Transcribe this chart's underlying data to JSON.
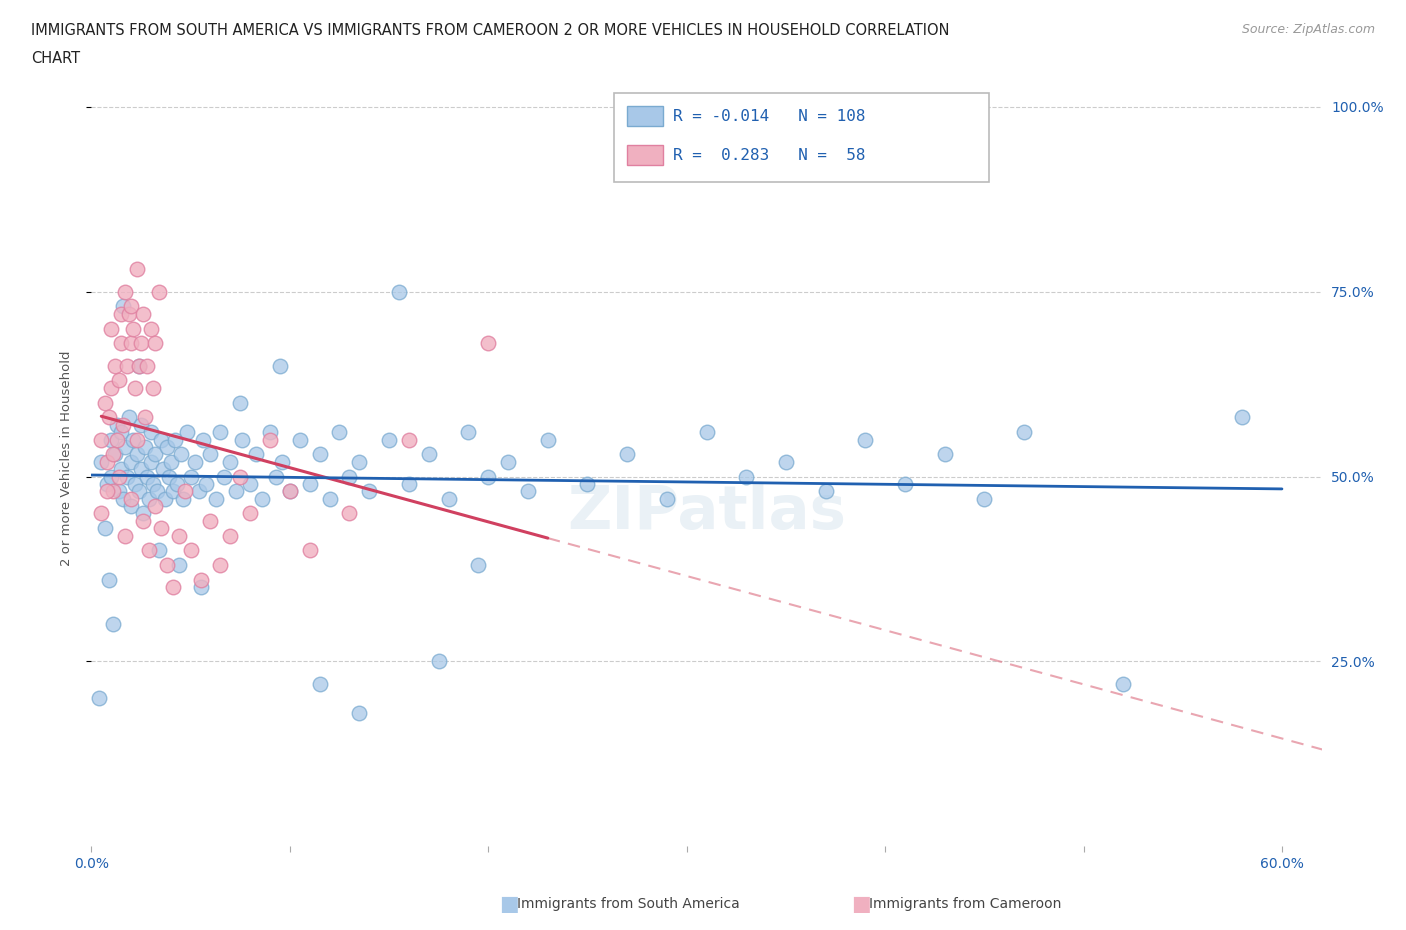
{
  "title_line1": "IMMIGRANTS FROM SOUTH AMERICA VS IMMIGRANTS FROM CAMEROON 2 OR MORE VEHICLES IN HOUSEHOLD CORRELATION",
  "title_line2": "CHART",
  "source": "Source: ZipAtlas.com",
  "ylabel": "2 or more Vehicles in Household",
  "r_south_america": -0.014,
  "n_south_america": 108,
  "r_cameroon": 0.283,
  "n_cameroon": 58,
  "color_sa_fill": "#a8c8e8",
  "color_sa_edge": "#7aaad0",
  "color_cam_fill": "#f0b0c0",
  "color_cam_edge": "#e080a0",
  "color_line_sa": "#2060b0",
  "color_line_cam_solid": "#d04060",
  "color_line_cam_dash": "#e08090",
  "watermark": "ZIPatlas",
  "sa_x": [
    0.005,
    0.008,
    0.01,
    0.01,
    0.012,
    0.013,
    0.014,
    0.015,
    0.015,
    0.016,
    0.017,
    0.018,
    0.019,
    0.02,
    0.02,
    0.021,
    0.022,
    0.023,
    0.024,
    0.025,
    0.025,
    0.026,
    0.027,
    0.028,
    0.029,
    0.03,
    0.03,
    0.031,
    0.032,
    0.033,
    0.035,
    0.036,
    0.037,
    0.038,
    0.039,
    0.04,
    0.041,
    0.042,
    0.043,
    0.045,
    0.046,
    0.048,
    0.05,
    0.052,
    0.054,
    0.056,
    0.058,
    0.06,
    0.063,
    0.065,
    0.067,
    0.07,
    0.073,
    0.076,
    0.08,
    0.083,
    0.086,
    0.09,
    0.093,
    0.096,
    0.1,
    0.105,
    0.11,
    0.115,
    0.12,
    0.125,
    0.13,
    0.135,
    0.14,
    0.15,
    0.16,
    0.17,
    0.18,
    0.19,
    0.2,
    0.21,
    0.22,
    0.23,
    0.25,
    0.27,
    0.29,
    0.31,
    0.33,
    0.35,
    0.37,
    0.39,
    0.41,
    0.43,
    0.45,
    0.47,
    0.004,
    0.007,
    0.009,
    0.011,
    0.016,
    0.024,
    0.034,
    0.044,
    0.055,
    0.075,
    0.095,
    0.115,
    0.135,
    0.155,
    0.175,
    0.195,
    0.58,
    0.52
  ],
  "sa_y": [
    0.52,
    0.49,
    0.55,
    0.5,
    0.53,
    0.57,
    0.48,
    0.56,
    0.51,
    0.47,
    0.54,
    0.5,
    0.58,
    0.52,
    0.46,
    0.55,
    0.49,
    0.53,
    0.48,
    0.57,
    0.51,
    0.45,
    0.54,
    0.5,
    0.47,
    0.56,
    0.52,
    0.49,
    0.53,
    0.48,
    0.55,
    0.51,
    0.47,
    0.54,
    0.5,
    0.52,
    0.48,
    0.55,
    0.49,
    0.53,
    0.47,
    0.56,
    0.5,
    0.52,
    0.48,
    0.55,
    0.49,
    0.53,
    0.47,
    0.56,
    0.5,
    0.52,
    0.48,
    0.55,
    0.49,
    0.53,
    0.47,
    0.56,
    0.5,
    0.52,
    0.48,
    0.55,
    0.49,
    0.53,
    0.47,
    0.56,
    0.5,
    0.52,
    0.48,
    0.55,
    0.49,
    0.53,
    0.47,
    0.56,
    0.5,
    0.52,
    0.48,
    0.55,
    0.49,
    0.53,
    0.47,
    0.56,
    0.5,
    0.52,
    0.48,
    0.55,
    0.49,
    0.53,
    0.47,
    0.56,
    0.2,
    0.43,
    0.36,
    0.3,
    0.73,
    0.65,
    0.4,
    0.38,
    0.35,
    0.6,
    0.65,
    0.22,
    0.18,
    0.75,
    0.25,
    0.38,
    0.58,
    0.22
  ],
  "cam_x": [
    0.005,
    0.007,
    0.008,
    0.009,
    0.01,
    0.01,
    0.011,
    0.012,
    0.013,
    0.014,
    0.015,
    0.015,
    0.016,
    0.017,
    0.018,
    0.019,
    0.02,
    0.02,
    0.021,
    0.022,
    0.023,
    0.024,
    0.025,
    0.026,
    0.027,
    0.028,
    0.03,
    0.031,
    0.032,
    0.034,
    0.005,
    0.008,
    0.011,
    0.014,
    0.017,
    0.02,
    0.023,
    0.026,
    0.029,
    0.032,
    0.035,
    0.038,
    0.041,
    0.044,
    0.047,
    0.05,
    0.055,
    0.06,
    0.065,
    0.07,
    0.075,
    0.08,
    0.09,
    0.1,
    0.11,
    0.13,
    0.16,
    0.2
  ],
  "cam_y": [
    0.55,
    0.6,
    0.52,
    0.58,
    0.62,
    0.7,
    0.48,
    0.65,
    0.55,
    0.63,
    0.68,
    0.72,
    0.57,
    0.75,
    0.65,
    0.72,
    0.68,
    0.73,
    0.7,
    0.62,
    0.78,
    0.65,
    0.68,
    0.72,
    0.58,
    0.65,
    0.7,
    0.62,
    0.68,
    0.75,
    0.45,
    0.48,
    0.53,
    0.5,
    0.42,
    0.47,
    0.55,
    0.44,
    0.4,
    0.46,
    0.43,
    0.38,
    0.35,
    0.42,
    0.48,
    0.4,
    0.36,
    0.44,
    0.38,
    0.42,
    0.5,
    0.45,
    0.55,
    0.48,
    0.4,
    0.45,
    0.55,
    0.68
  ],
  "xlim": [
    0.0,
    0.62
  ],
  "ylim": [
    0.0,
    1.05
  ],
  "ytick_vals": [
    0.25,
    0.5,
    0.75,
    1.0
  ],
  "ytick_labels": [
    "25.0%",
    "50.0%",
    "75.0%",
    "100.0%"
  ]
}
